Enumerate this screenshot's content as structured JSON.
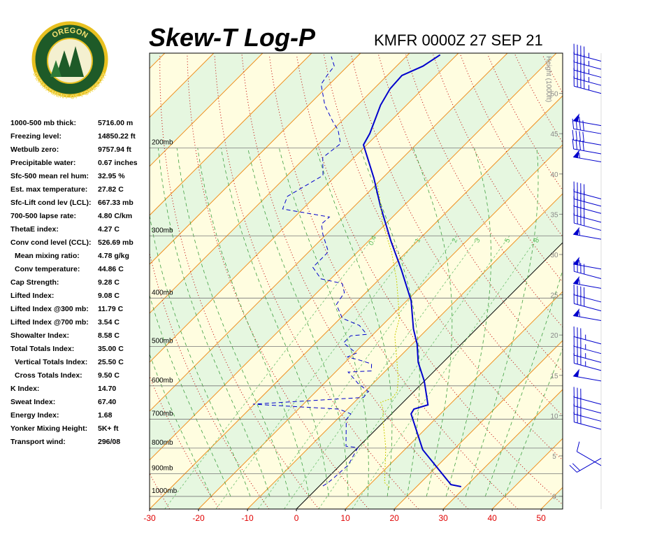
{
  "logo": {
    "top": "OREGON",
    "bottom": "DEPARTMENT OF FORESTRY"
  },
  "indices": [
    [
      "1000-500 mb thick:",
      "5716.00 m"
    ],
    [
      "Freezing level:",
      "14850.22 ft"
    ],
    [
      "Wetbulb zero:",
      "9757.94 ft"
    ],
    [
      "Precipitable water:",
      "0.67 inches"
    ],
    [
      "Sfc-500 mean rel hum:",
      "32.95 %"
    ],
    [
      "Est. max temperature:",
      "27.82 C"
    ],
    [
      "Sfc-Lift cond lev (LCL):",
      "667.33 mb"
    ],
    [
      "700-500 lapse rate:",
      "4.80 C/km"
    ],
    [
      "ThetaE index:",
      "4.27 C"
    ],
    [
      "Conv cond level (CCL):",
      "526.69 mb"
    ],
    [
      "Mean mixing ratio:",
      "4.78 g/kg"
    ],
    [
      "Conv temperature:",
      "44.86 C"
    ],
    [
      "Cap Strength:",
      "9.28 C"
    ],
    [
      "Lifted Index:",
      "9.08 C"
    ],
    [
      "Lifted Index @300 mb:",
      "11.79 C"
    ],
    [
      "Lifted Index @700 mb:",
      "3.54 C"
    ],
    [
      "Showalter Index:",
      "8.58 C"
    ],
    [
      "Total Totals Index:",
      "35.00 C"
    ],
    [
      "Vertical Totals Index:",
      "25.50 C"
    ],
    [
      "Cross Totals Index:",
      "9.50 C"
    ],
    [
      "K Index:",
      "14.70"
    ],
    [
      "Sweat Index:",
      "67.40"
    ],
    [
      "Energy Index:",
      "1.68"
    ],
    [
      "Yonker Mixing Height:",
      "5K+ ft"
    ],
    [
      "Transport wind:",
      "296/08"
    ]
  ],
  "chart_data": {
    "type": "skewt",
    "title": "Skew-T Log-P",
    "subtitle": "KMFR 0000Z 27 SEP 21",
    "xlim": [
      -30,
      54.4
    ],
    "xticks": [
      -30,
      -20,
      -10,
      0,
      10,
      20,
      30,
      40,
      50
    ],
    "ylim": [
      1060,
      129
    ],
    "log_y": true,
    "yticks": [
      {
        "value": 1000,
        "label": "1000mb"
      },
      {
        "value": 900,
        "label": "900mb"
      },
      {
        "value": 800,
        "label": "800mb"
      },
      {
        "value": 700,
        "label": "700mb"
      },
      {
        "value": 600,
        "label": "600mb"
      },
      {
        "value": 500,
        "label": "500mb"
      },
      {
        "value": 400,
        "label": "400mb"
      },
      {
        "value": 300,
        "label": "300mb"
      },
      {
        "value": 200,
        "label": "200mb"
      }
    ],
    "y2label": "Height (1000ft)",
    "y2lim": [
      -1.6,
      55
    ],
    "y2ticks": [
      0,
      5,
      10,
      15,
      20,
      25,
      30,
      35,
      40,
      45,
      50
    ],
    "mixing_ratios": [
      0.4,
      1,
      2,
      3,
      5,
      8
    ],
    "series": [
      {
        "color": "#0000cc",
        "style": "solid",
        "pressure": [
          956,
          947,
          806,
          683,
          668,
          655,
          587,
          538,
          495,
          461,
          405,
          351,
          308,
          262,
          230,
          197,
          187,
          164,
          152,
          143,
          137,
          130
        ],
        "values": [
          29.1,
          26.6,
          13.7,
          4,
          3.6,
          5.6,
          0,
          -5.1,
          -9,
          -12.9,
          -19.1,
          -27.4,
          -35.3,
          -44.6,
          -51.7,
          -60.7,
          -61.7,
          -65.3,
          -66.7,
          -67,
          -64.6,
          -63.4
        ]
      },
      {
        "color": "#0000cc",
        "style": "dashed",
        "pressure": [
          953,
          938,
          917,
          865,
          798,
          793,
          701,
          683,
          668,
          653,
          633,
          616,
          593,
          563,
          560,
          542,
          533,
          525,
          516,
          492,
          476,
          473,
          454,
          439,
          412,
          390,
          374,
          366,
          347,
          323,
          298,
          284,
          275,
          265,
          250,
          227,
          209,
          196,
          184,
          178,
          164,
          149,
          142,
          137,
          131
        ],
        "values": [
          0.7,
          1.1,
          1.3,
          1.6,
          0,
          -2.7,
          -8.1,
          -8.3,
          -11.7,
          -30.3,
          -9.1,
          -9.3,
          -13.1,
          -17.4,
          -12.9,
          -14.3,
          -17.4,
          -20.6,
          -19.6,
          -24.3,
          -24.3,
          -21.3,
          -24.6,
          -29.6,
          -33.6,
          -34.4,
          -36.7,
          -42,
          -46,
          -46,
          -50.7,
          -53.1,
          -52.9,
          -64.1,
          -65.7,
          -62.7,
          -66.4,
          -65.6,
          -68.9,
          -71.3,
          -76.7,
          -81.7,
          -82.4,
          -82.7,
          -85.3
        ]
      },
      {
        "color": "#cccc00",
        "style": "dotted",
        "pressure": [
          959,
          938,
          798,
          701,
          668,
          647,
          636,
          616,
          578,
          476,
          439,
          368,
          323,
          284,
          258,
          234
        ],
        "values": [
          14.6,
          12.6,
          5.7,
          -0.6,
          -2.7,
          -4.6,
          -3.1,
          -3.4,
          -6,
          -15.3,
          -17.9,
          -26.3,
          -33.1,
          -40.6,
          -45.3,
          -50.3
        ]
      }
    ],
    "wind": {
      "color": "#0000cc",
      "heights": [
        54,
        53,
        52,
        51,
        50,
        46,
        45,
        43.6,
        42.5,
        41.5,
        36.9,
        36,
        35.1,
        34,
        33,
        31.9,
        28.2,
        27,
        25.8,
        24.1,
        23,
        21.8,
        18.9,
        17.7,
        16.6,
        15.6,
        14.3,
        11.4,
        10.3,
        9.3,
        8.3,
        4.7,
        3.8
      ],
      "direction": [
        285,
        285,
        285,
        285,
        285,
        280,
        280,
        280,
        280,
        280,
        285,
        285,
        285,
        285,
        285,
        280,
        280,
        285,
        280,
        285,
        285,
        280,
        285,
        285,
        285,
        285,
        280,
        285,
        285,
        285,
        285,
        240,
        300
      ],
      "speed": [
        45,
        45,
        45,
        45,
        45,
        55,
        40,
        40,
        40,
        55,
        40,
        40,
        40,
        40,
        40,
        55,
        55,
        40,
        55,
        40,
        40,
        55,
        35,
        35,
        35,
        35,
        50,
        30,
        30,
        30,
        30,
        20,
        10
      ]
    }
  }
}
